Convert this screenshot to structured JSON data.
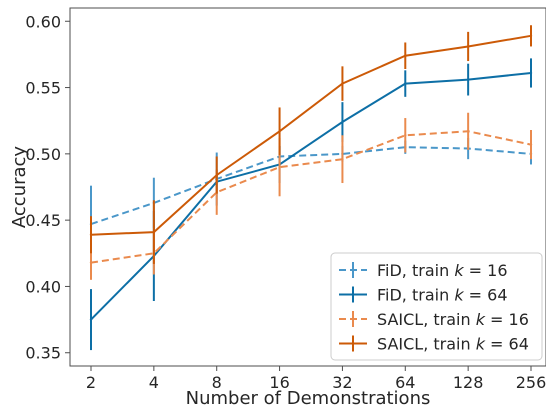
{
  "chart_data": {
    "type": "line",
    "xlabel": "Number of Demonstrations",
    "ylabel": "Accuracy",
    "x_scale": "log2",
    "x": [
      2,
      4,
      8,
      16,
      32,
      64,
      128,
      256
    ],
    "x_tick_labels": [
      "2",
      "4",
      "8",
      "16",
      "32",
      "64",
      "128",
      "256"
    ],
    "ylim": [
      0.34,
      0.61
    ],
    "y_ticks": [
      0.35,
      0.4,
      0.45,
      0.5,
      0.55,
      0.6
    ],
    "y_tick_labels": [
      "0.35",
      "0.40",
      "0.45",
      "0.50",
      "0.55",
      "0.60"
    ],
    "grid": false,
    "legend_position": "lower-right",
    "series": [
      {
        "name": "FiD, train k = 16",
        "legend_prefix": "FiD, train ",
        "legend_k": "k",
        "legend_suffix": " = 16",
        "color": "#4a97c9",
        "dashed": true,
        "values": [
          0.447,
          0.463,
          0.481,
          0.498,
          0.5,
          0.505,
          0.504,
          0.5
        ],
        "err": [
          0.029,
          0.019,
          0.02,
          0.008,
          0.006,
          0.005,
          0.008,
          0.008
        ]
      },
      {
        "name": "FiD, train k = 64",
        "legend_prefix": "FiD, train ",
        "legend_k": "k",
        "legend_suffix": " = 64",
        "color": "#0d6fa6",
        "dashed": false,
        "values": [
          0.375,
          0.423,
          0.479,
          0.492,
          0.524,
          0.553,
          0.556,
          0.561
        ],
        "err": [
          0.023,
          0.034,
          0.009,
          0.014,
          0.015,
          0.01,
          0.012,
          0.011
        ]
      },
      {
        "name": "SAICL, train k = 16",
        "legend_prefix": "SAICL, train ",
        "legend_k": "k",
        "legend_suffix": " = 16",
        "color": "#ea8a4d",
        "dashed": true,
        "values": [
          0.418,
          0.425,
          0.471,
          0.49,
          0.496,
          0.514,
          0.517,
          0.507
        ],
        "err": [
          0.013,
          0.016,
          0.017,
          0.022,
          0.018,
          0.013,
          0.014,
          0.011
        ]
      },
      {
        "name": "SAICL, train k = 64",
        "legend_prefix": "SAICL, train ",
        "legend_k": "k",
        "legend_suffix": " = 64",
        "color": "#cc5a07",
        "dashed": false,
        "values": [
          0.439,
          0.441,
          0.484,
          0.517,
          0.553,
          0.574,
          0.581,
          0.589
        ],
        "err": [
          0.014,
          0.024,
          0.014,
          0.018,
          0.013,
          0.01,
          0.011,
          0.008
        ]
      }
    ]
  }
}
